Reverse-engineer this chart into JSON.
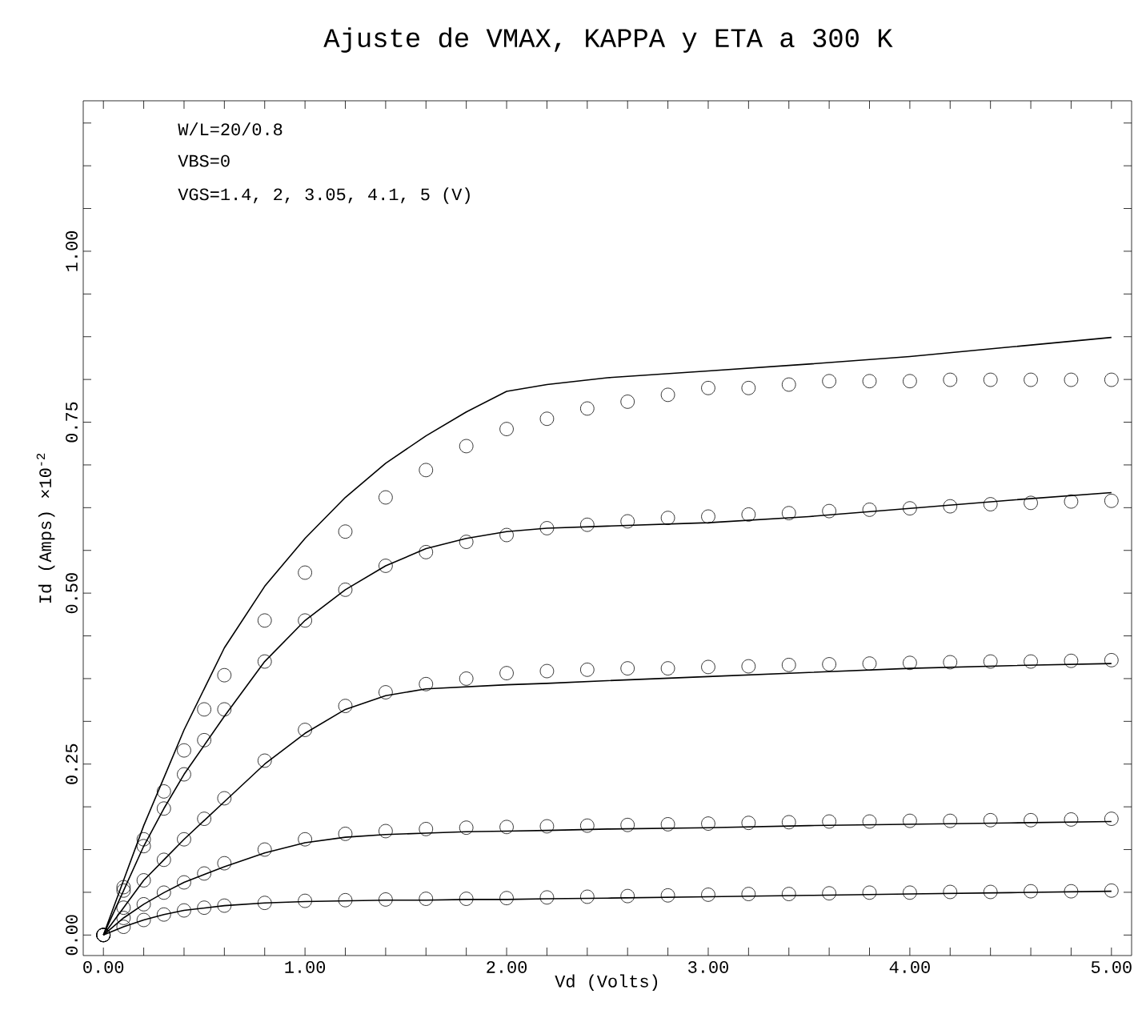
{
  "chart_data": {
    "type": "line",
    "title": "Ajuste de VMAX, KAPPA y ETA a 300 K",
    "xlabel": "Vd (Volts)",
    "ylabel": "Id (Amps) ×10$^{-2}$",
    "annotations": [
      "W/L=20/0.8",
      "VBS=0",
      "VGS=1.4, 2, 3.05, 4.1, 5 (V)"
    ],
    "xlim": [
      -0.1,
      5.1
    ],
    "ylim": [
      -0.03,
      1.22
    ],
    "xticks": [
      {
        "value": 0,
        "label": "0.00"
      },
      {
        "value": 0.2,
        "label": null
      },
      {
        "value": 0.4,
        "label": null
      },
      {
        "value": 0.6,
        "label": null
      },
      {
        "value": 0.8,
        "label": null
      },
      {
        "value": 1,
        "label": "1.00"
      },
      {
        "value": 1.2,
        "label": null
      },
      {
        "value": 1.4,
        "label": null
      },
      {
        "value": 1.6,
        "label": null
      },
      {
        "value": 1.8,
        "label": null
      },
      {
        "value": 2,
        "label": "2.00"
      },
      {
        "value": 2.2,
        "label": null
      },
      {
        "value": 2.4,
        "label": null
      },
      {
        "value": 2.6,
        "label": null
      },
      {
        "value": 2.8,
        "label": null
      },
      {
        "value": 3,
        "label": "3.00"
      },
      {
        "value": 3.2,
        "label": null
      },
      {
        "value": 3.4,
        "label": null
      },
      {
        "value": 3.6,
        "label": null
      },
      {
        "value": 3.8,
        "label": null
      },
      {
        "value": 4,
        "label": "4.00"
      },
      {
        "value": 4.2,
        "label": null
      },
      {
        "value": 4.4,
        "label": null
      },
      {
        "value": 4.6,
        "label": null
      },
      {
        "value": 4.8,
        "label": null
      },
      {
        "value": 5,
        "label": "5.00"
      }
    ],
    "yticks": [
      {
        "value": 0,
        "label": "0.00"
      },
      {
        "value": 0.0625,
        "label": null
      },
      {
        "value": 0.125,
        "label": null
      },
      {
        "value": 0.1875,
        "label": null
      },
      {
        "value": 0.25,
        "label": "0.25"
      },
      {
        "value": 0.3125,
        "label": null
      },
      {
        "value": 0.375,
        "label": null
      },
      {
        "value": 0.4375,
        "label": null
      },
      {
        "value": 0.5,
        "label": "0.50"
      },
      {
        "value": 0.5625,
        "label": null
      },
      {
        "value": 0.625,
        "label": null
      },
      {
        "value": 0.6875,
        "label": null
      },
      {
        "value": 0.75,
        "label": "0.75"
      },
      {
        "value": 0.8125,
        "label": null
      },
      {
        "value": 0.875,
        "label": null
      },
      {
        "value": 0.9375,
        "label": null
      },
      {
        "value": 1,
        "label": "1.00"
      },
      {
        "value": 1.0625,
        "label": null
      },
      {
        "value": 1.125,
        "label": null
      },
      {
        "value": 1.1875,
        "label": null
      }
    ],
    "series": [
      {
        "type": "scatter",
        "marker": "circle",
        "color": "#000000",
        "x": [
          0,
          0.1,
          0.2,
          0.3,
          0.4,
          0.5,
          0.6,
          0.8,
          1.0,
          1.2,
          1.4,
          1.6,
          1.8,
          2.0,
          2.2,
          2.4,
          2.6,
          2.8,
          3.0,
          3.2,
          3.4,
          3.6,
          3.8,
          4.0,
          4.2,
          4.4,
          4.6,
          4.8,
          5.0
        ],
        "values": [
          0,
          0.07,
          0.14,
          0.21,
          0.27,
          0.33,
          0.38,
          0.46,
          0.53,
          0.59,
          0.64,
          0.68,
          0.715,
          0.74,
          0.755,
          0.77,
          0.78,
          0.79,
          0.8,
          0.8,
          0.805,
          0.81,
          0.81,
          0.81,
          0.812,
          0.812,
          0.812,
          0.812,
          0.812
        ]
      },
      {
        "type": "scatter",
        "marker": "circle",
        "color": "#000000",
        "x": [
          0,
          0.1,
          0.2,
          0.3,
          0.4,
          0.5,
          0.6,
          0.8,
          1.0,
          1.2,
          1.4,
          1.6,
          1.8,
          2.0,
          2.2,
          2.4,
          2.6,
          2.8,
          3.0,
          3.2,
          3.4,
          3.6,
          3.8,
          4.0,
          4.2,
          4.4,
          4.6,
          4.8,
          5.0
        ],
        "values": [
          0,
          0.065,
          0.13,
          0.185,
          0.235,
          0.285,
          0.33,
          0.4,
          0.46,
          0.505,
          0.54,
          0.56,
          0.575,
          0.585,
          0.595,
          0.6,
          0.605,
          0.61,
          0.612,
          0.615,
          0.617,
          0.62,
          0.622,
          0.624,
          0.627,
          0.63,
          0.632,
          0.634,
          0.635
        ]
      },
      {
        "type": "scatter",
        "marker": "circle",
        "color": "#000000",
        "x": [
          0,
          0.1,
          0.2,
          0.3,
          0.4,
          0.5,
          0.6,
          0.8,
          1.0,
          1.2,
          1.4,
          1.6,
          1.8,
          2.0,
          2.2,
          2.4,
          2.6,
          2.8,
          3.0,
          3.2,
          3.4,
          3.6,
          3.8,
          4.0,
          4.2,
          4.4,
          4.6,
          4.8,
          5.0
        ],
        "values": [
          0,
          0.04,
          0.08,
          0.11,
          0.14,
          0.17,
          0.2,
          0.255,
          0.3,
          0.335,
          0.355,
          0.367,
          0.375,
          0.383,
          0.386,
          0.388,
          0.39,
          0.39,
          0.392,
          0.393,
          0.395,
          0.396,
          0.397,
          0.398,
          0.399,
          0.4,
          0.4,
          0.401,
          0.402
        ]
      },
      {
        "type": "scatter",
        "marker": "circle",
        "color": "#000000",
        "x": [
          0,
          0.1,
          0.2,
          0.3,
          0.4,
          0.5,
          0.6,
          0.8,
          1.0,
          1.2,
          1.4,
          1.6,
          1.8,
          2.0,
          2.2,
          2.4,
          2.6,
          2.8,
          3.0,
          3.2,
          3.4,
          3.6,
          3.8,
          4.0,
          4.2,
          4.4,
          4.6,
          4.8,
          5.0
        ],
        "values": [
          0,
          0.025,
          0.045,
          0.062,
          0.077,
          0.09,
          0.105,
          0.125,
          0.14,
          0.148,
          0.152,
          0.155,
          0.157,
          0.158,
          0.159,
          0.16,
          0.161,
          0.162,
          0.163,
          0.164,
          0.165,
          0.166,
          0.166,
          0.167,
          0.167,
          0.168,
          0.168,
          0.169,
          0.17
        ]
      },
      {
        "type": "scatter",
        "marker": "circle",
        "color": "#000000",
        "x": [
          0,
          0.1,
          0.2,
          0.3,
          0.4,
          0.5,
          0.6,
          0.8,
          1.0,
          1.2,
          1.4,
          1.6,
          1.8,
          2.0,
          2.2,
          2.4,
          2.6,
          2.8,
          3.0,
          3.2,
          3.4,
          3.6,
          3.8,
          4.0,
          4.2,
          4.4,
          4.6,
          4.8,
          5.0
        ],
        "values": [
          0,
          0.012,
          0.022,
          0.03,
          0.036,
          0.04,
          0.043,
          0.047,
          0.05,
          0.051,
          0.052,
          0.053,
          0.053,
          0.054,
          0.055,
          0.056,
          0.057,
          0.058,
          0.059,
          0.06,
          0.06,
          0.061,
          0.062,
          0.062,
          0.063,
          0.063,
          0.064,
          0.064,
          0.065
        ]
      },
      {
        "line_style": "solid",
        "color": "#000000",
        "x": [
          0,
          0.1,
          0.2,
          0.3,
          0.4,
          0.6,
          0.8,
          1.0,
          1.2,
          1.4,
          1.6,
          1.8,
          2.0,
          2.2,
          2.5,
          3.0,
          3.5,
          4.0,
          4.5,
          5.0
        ],
        "values": [
          0,
          0.08,
          0.16,
          0.23,
          0.3,
          0.42,
          0.51,
          0.58,
          0.64,
          0.69,
          0.73,
          0.765,
          0.795,
          0.805,
          0.815,
          0.825,
          0.835,
          0.846,
          0.86,
          0.874
        ]
      },
      {
        "line_style": "solid",
        "color": "#000000",
        "x": [
          0,
          0.1,
          0.2,
          0.3,
          0.4,
          0.6,
          0.8,
          1.0,
          1.2,
          1.4,
          1.6,
          1.8,
          2.0,
          2.2,
          2.5,
          3.0,
          3.5,
          4.0,
          4.5,
          5.0
        ],
        "values": [
          0,
          0.065,
          0.13,
          0.185,
          0.235,
          0.32,
          0.4,
          0.46,
          0.505,
          0.54,
          0.565,
          0.58,
          0.59,
          0.595,
          0.598,
          0.603,
          0.612,
          0.624,
          0.636,
          0.647
        ]
      },
      {
        "line_style": "solid",
        "color": "#000000",
        "x": [
          0,
          0.1,
          0.2,
          0.3,
          0.4,
          0.6,
          0.8,
          1.0,
          1.2,
          1.4,
          1.6,
          1.8,
          2.0,
          2.2,
          2.5,
          3.0,
          3.5,
          4.0,
          4.5,
          5.0
        ],
        "values": [
          0,
          0.04,
          0.08,
          0.11,
          0.14,
          0.195,
          0.25,
          0.295,
          0.33,
          0.35,
          0.36,
          0.363,
          0.366,
          0.368,
          0.372,
          0.378,
          0.384,
          0.39,
          0.394,
          0.397
        ]
      },
      {
        "line_style": "solid",
        "color": "#000000",
        "x": [
          0,
          0.1,
          0.2,
          0.3,
          0.4,
          0.6,
          0.8,
          1.0,
          1.2,
          1.4,
          1.6,
          1.8,
          2.0,
          2.2,
          2.5,
          3.0,
          3.5,
          4.0,
          4.5,
          5.0
        ],
        "values": [
          0,
          0.025,
          0.045,
          0.062,
          0.077,
          0.1,
          0.12,
          0.135,
          0.143,
          0.147,
          0.149,
          0.151,
          0.152,
          0.153,
          0.155,
          0.157,
          0.16,
          0.162,
          0.164,
          0.166
        ]
      },
      {
        "line_style": "solid",
        "color": "#000000",
        "x": [
          0,
          0.1,
          0.2,
          0.3,
          0.4,
          0.6,
          0.8,
          1.0,
          1.2,
          1.4,
          1.6,
          1.8,
          2.0,
          2.2,
          2.5,
          3.0,
          3.5,
          4.0,
          4.5,
          5.0
        ],
        "values": [
          0,
          0.012,
          0.022,
          0.03,
          0.036,
          0.043,
          0.047,
          0.049,
          0.05,
          0.051,
          0.051,
          0.052,
          0.052,
          0.053,
          0.054,
          0.056,
          0.058,
          0.06,
          0.062,
          0.064
        ]
      }
    ]
  }
}
